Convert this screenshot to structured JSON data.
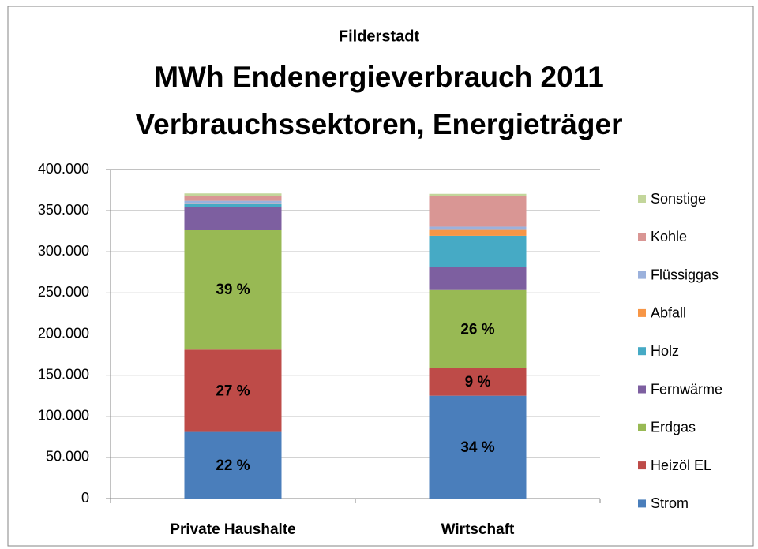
{
  "chart_data": {
    "type": "stacked_bar",
    "subtitle": "Filderstadt",
    "title": [
      "MWh Endenergieverbrauch 2011",
      "Verbrauchssektoren, Energieträger"
    ],
    "categories": [
      "Private Haushalte",
      "Wirtschaft"
    ],
    "series": [
      {
        "name": "Strom",
        "color": "#4a7ebb",
        "values": [
          81000,
          125000
        ],
        "value_labels": [
          "22 %",
          "34 %"
        ]
      },
      {
        "name": "Heizöl EL",
        "color": "#be4b48",
        "values": [
          100000,
          33500
        ],
        "value_labels": [
          "27 %",
          "9 %"
        ]
      },
      {
        "name": "Erdgas",
        "color": "#98b954",
        "values": [
          146000,
          95000
        ],
        "value_labels": [
          "39 %",
          "26 %"
        ]
      },
      {
        "name": "Fernwärme",
        "color": "#7d5fa0",
        "values": [
          27000,
          28000
        ]
      },
      {
        "name": "Holz",
        "color": "#46aac5",
        "values": [
          4000,
          38000
        ]
      },
      {
        "name": "Abfall",
        "color": "#f79646",
        "values": [
          1000,
          8000
        ]
      },
      {
        "name": "Flüssiggas",
        "color": "#9bb1dc",
        "values": [
          3000,
          3000
        ]
      },
      {
        "name": "Kohle",
        "color": "#d99694",
        "values": [
          6000,
          37000
        ]
      },
      {
        "name": "Sonstige",
        "color": "#c3d69b",
        "values": [
          3000,
          3000
        ]
      }
    ],
    "ylim": [
      0,
      400000
    ],
    "yticks": [
      0,
      {
        "value": 50000,
        "label": "50.000"
      },
      {
        "value": 100000,
        "label": "100.000"
      },
      {
        "value": 150000,
        "label": "150.000"
      },
      {
        "value": 200000,
        "label": "200.000"
      },
      {
        "value": 250000,
        "label": "250.000"
      },
      {
        "value": 300000,
        "label": "300.000"
      },
      {
        "value": 350000,
        "label": "350.000"
      },
      {
        "value": 400000,
        "label": "400.000"
      }
    ],
    "grid": true,
    "legend": "right"
  }
}
